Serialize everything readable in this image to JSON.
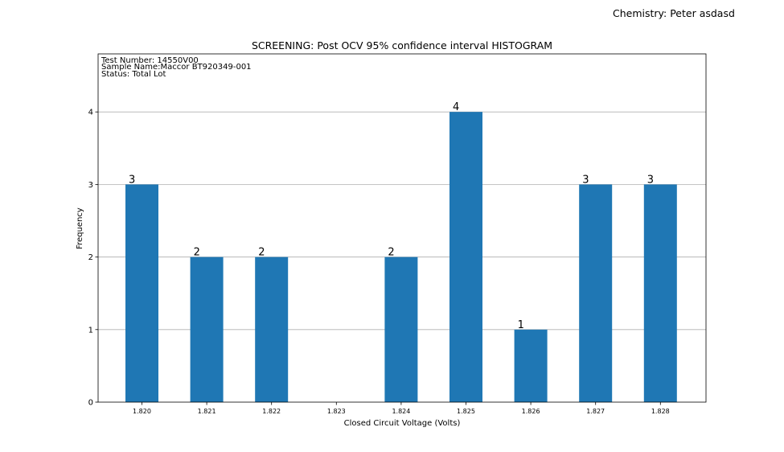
{
  "header": {
    "chemistry": "Chemistry: Peter asdasd"
  },
  "chart_data": {
    "type": "bar",
    "title": "SCREENING: Post OCV 95% confidence interval HISTOGRAM",
    "xlabel": "Closed Circuit Voltage (Volts)",
    "ylabel": "Frequency",
    "info_lines": [
      "Test Number: 14550V00",
      "Sample Name:Maccor BT920349-001",
      "Status: Total Lot"
    ],
    "categories": [
      "1.820",
      "1.821",
      "1.822",
      "1.823",
      "1.824",
      "1.825",
      "1.826",
      "1.827",
      "1.828"
    ],
    "values": [
      3,
      2,
      2,
      0,
      2,
      4,
      1,
      3,
      3
    ],
    "data_labels": [
      "3",
      "2",
      "2",
      "",
      "2",
      "4",
      "1",
      "3",
      "3"
    ],
    "ylim": [
      0,
      4.8
    ],
    "yticks": [
      0,
      1,
      2,
      3,
      4
    ],
    "grid": "y",
    "bar_color": "#1f77b4"
  }
}
